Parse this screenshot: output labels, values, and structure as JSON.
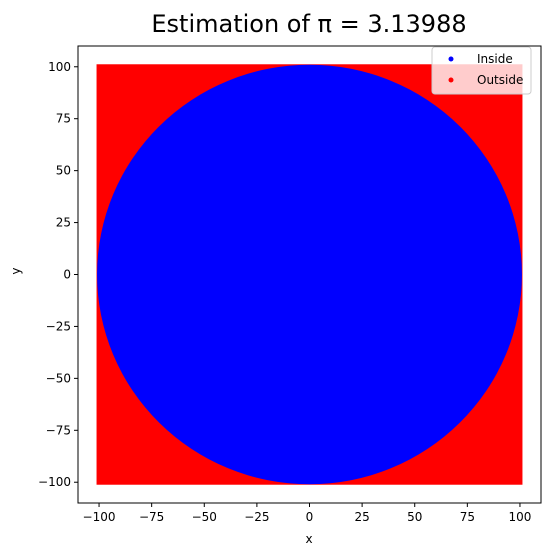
{
  "chart_data": {
    "type": "scatter",
    "title": "Estimation of π = 3.13988",
    "xlabel": "x",
    "ylabel": "y",
    "xlim": [
      -110,
      110
    ],
    "ylim": [
      -110,
      110
    ],
    "x_ticks": [
      -100,
      -75,
      -50,
      -25,
      0,
      25,
      50,
      75,
      100
    ],
    "y_ticks": [
      -100,
      -75,
      -50,
      -25,
      0,
      25,
      50,
      75,
      100
    ],
    "grid": false,
    "legend_position": "top-right",
    "square": {
      "x_range": [
        -100,
        100
      ],
      "y_range": [
        -100,
        100
      ]
    },
    "circle": {
      "center": [
        0,
        0
      ],
      "radius": 100
    },
    "series": [
      {
        "name": "Inside",
        "color": "#0000ff",
        "region": "x² + y² ≤ 100²"
      },
      {
        "name": "Outside",
        "color": "#ff0000",
        "region": "x² + y² > 100²"
      }
    ],
    "pi_estimate": 3.13988
  }
}
